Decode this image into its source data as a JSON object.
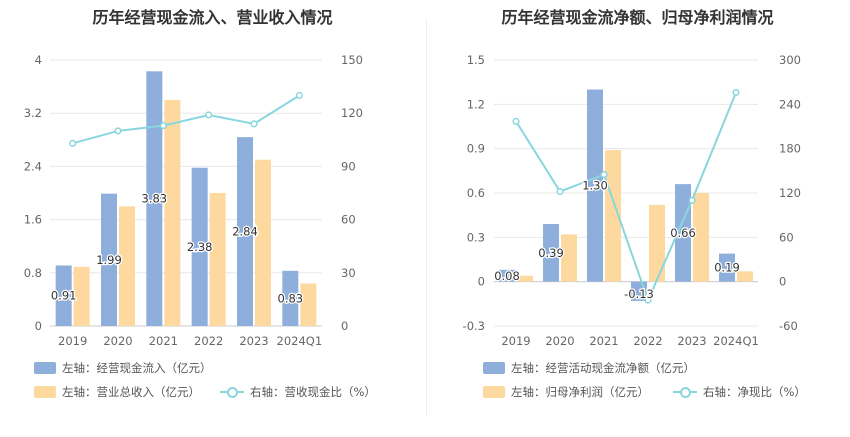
{
  "chart_data": [
    {
      "type": "bar",
      "title": "历年经营现金流入、营业收入情况",
      "categories": [
        "2019",
        "2020",
        "2021",
        "2022",
        "2023",
        "2024Q1"
      ],
      "y_left": {
        "ylim": [
          0,
          4
        ],
        "ticks": [
          "0",
          "0.8",
          "1.6",
          "2.4",
          "3.2",
          "4"
        ]
      },
      "y_right": {
        "ylim": [
          0,
          150
        ],
        "ticks": [
          "0",
          "30",
          "60",
          "90",
          "120",
          "150"
        ]
      },
      "series": [
        {
          "name": "左轴：经营现金流入（亿元）",
          "axis": "left",
          "kind": "bar",
          "color": "#8eaedc",
          "values": [
            0.91,
            1.99,
            3.83,
            2.38,
            2.84,
            0.83
          ],
          "labels": [
            "0.91",
            "1.99",
            "3.83",
            "2.38",
            "2.84",
            "0.83"
          ]
        },
        {
          "name": "左轴：营业总收入（亿元）",
          "axis": "left",
          "kind": "bar",
          "color": "#fdd9a0",
          "values": [
            0.89,
            1.8,
            3.4,
            2.0,
            2.5,
            0.64
          ]
        },
        {
          "name": "右轴：营收现金比（%）",
          "axis": "right",
          "kind": "line",
          "color": "#88d6de",
          "values": [
            103,
            110,
            113,
            119,
            114,
            130
          ]
        }
      ]
    },
    {
      "type": "bar",
      "title": "历年经营现金流净额、归母净利润情况",
      "categories": [
        "2019",
        "2020",
        "2021",
        "2022",
        "2023",
        "2024Q1"
      ],
      "y_left": {
        "ylim": [
          -0.3,
          1.5
        ],
        "ticks": [
          "-0.3",
          "0",
          "0.3",
          "0.6",
          "0.9",
          "1.2",
          "1.5"
        ]
      },
      "y_right": {
        "ylim": [
          -60,
          300
        ],
        "ticks": [
          "-60",
          "0",
          "60",
          "120",
          "180",
          "240",
          "300"
        ]
      },
      "series": [
        {
          "name": "左轴：经营活动现金流净额（亿元）",
          "axis": "left",
          "kind": "bar",
          "color": "#8eaedc",
          "values": [
            0.08,
            0.39,
            1.3,
            -0.13,
            0.66,
            0.19
          ],
          "labels": [
            "0.08",
            "0.39",
            "1.30",
            "-0.13",
            "0.66",
            "0.19"
          ]
        },
        {
          "name": "左轴：归母净利润（亿元）",
          "axis": "left",
          "kind": "bar",
          "color": "#fdd9a0",
          "values": [
            0.04,
            0.32,
            0.89,
            0.52,
            0.6,
            0.07
          ]
        },
        {
          "name": "右轴：净现比（%）",
          "axis": "right",
          "kind": "line",
          "color": "#88d6de",
          "values": [
            217,
            122,
            145,
            -25,
            110,
            256
          ]
        }
      ]
    }
  ]
}
